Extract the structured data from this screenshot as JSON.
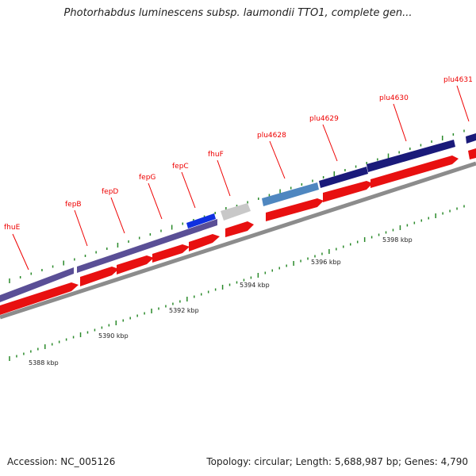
{
  "title": "Photorhabdus luminescens subsp. laumondii TTO1, complete gen...",
  "footer": {
    "accession_label": "Accession: NC_005126",
    "topology_label": "Topology: circular; Length: 5,688,987 bp; Genes: 4,790"
  },
  "colors": {
    "backbone": "#8c8c8c",
    "forward_gene": "#e81010",
    "reverse_gene_purple": "#5a4f96",
    "reverse_gene_navy": "#1a1a7a",
    "reverse_gene_blue": "#1030e0",
    "gene_lightblue": "#4f87c0",
    "gene_grey": "#c8c8c8",
    "label": "#ee0000",
    "tick": "#2a8a2a"
  },
  "gene_labels": [
    {
      "text": "fhuE"
    },
    {
      "text": "fepB"
    },
    {
      "text": "fepD"
    },
    {
      "text": "fepG"
    },
    {
      "text": "fepC"
    },
    {
      "text": "fhuF"
    },
    {
      "text": "plu4628"
    },
    {
      "text": "plu4629"
    },
    {
      "text": "plu4630"
    },
    {
      "text": "plu4631"
    }
  ],
  "scale_labels": [
    "5388 kbp",
    "5390 kbp",
    "5392 kbp",
    "5394 kbp",
    "5396 kbp",
    "5398 kbp"
  ]
}
